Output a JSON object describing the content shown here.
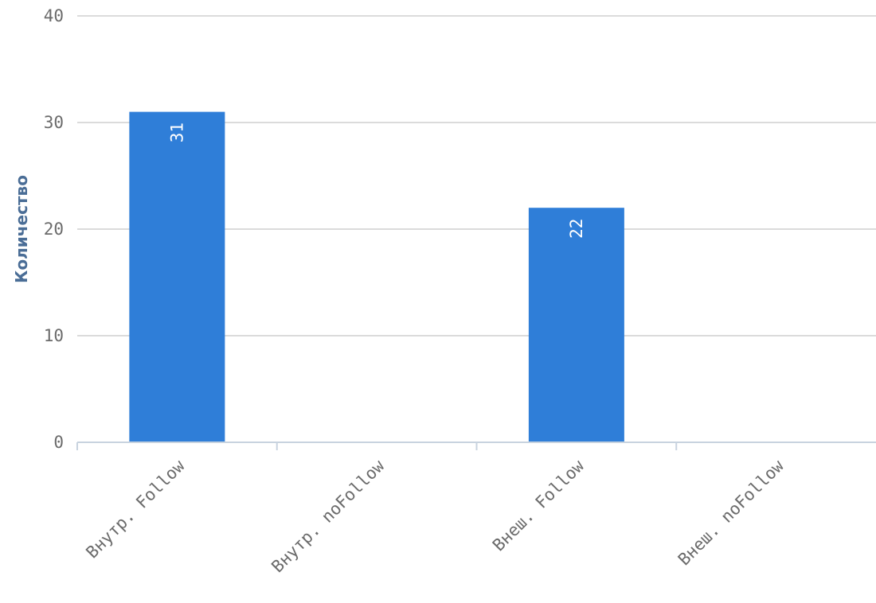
{
  "chart_data": {
    "type": "bar",
    "title": "",
    "xlabel": "",
    "ylabel": "Количество",
    "categories": [
      "Внутр. Follow",
      "Внутр. noFollow",
      "Внеш. Follow",
      "Внеш. noFollow"
    ],
    "values": [
      31,
      0,
      22,
      0
    ],
    "data_labels": [
      "31",
      "",
      "22",
      ""
    ],
    "ylim": [
      0,
      40
    ],
    "yticks": [
      "0",
      "10",
      "20",
      "30",
      "40"
    ],
    "grid": true,
    "legend": "none",
    "colors": {
      "bar": "#2f7ed8",
      "grid": "#cfcfcf",
      "axis": "#c8d3df",
      "tick_text": "#6b6b6b",
      "ylabel": "#4a6d96"
    }
  }
}
